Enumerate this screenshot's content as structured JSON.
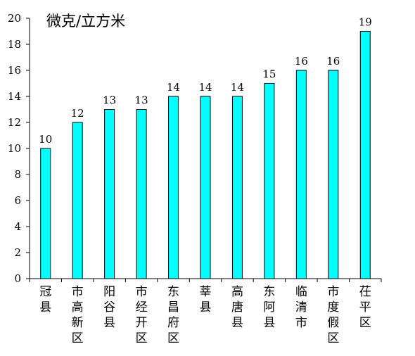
{
  "chart_data": {
    "type": "bar",
    "unit_label": "微克/立方米",
    "categories": [
      "冠县",
      "市高新区",
      "阳谷县",
      "市经开区",
      "东昌府区",
      "莘县",
      "高唐县",
      "东阿县",
      "临清市",
      "市度假区",
      "茌平区"
    ],
    "values": [
      10,
      12,
      13,
      13,
      14,
      14,
      14,
      15,
      16,
      16,
      19
    ],
    "data_labels": [
      "10",
      "12",
      "13",
      "13",
      "14",
      "14",
      "14",
      "15",
      "16",
      "16",
      "19"
    ],
    "y_ticks": [
      "0",
      "2",
      "4",
      "6",
      "8",
      "10",
      "12",
      "14",
      "16",
      "18",
      "20"
    ],
    "ylim": [
      0,
      20
    ],
    "grid": false,
    "legend": "none",
    "colors": {
      "bar_fill": "#00ffff",
      "bar_stroke": "#000000",
      "axis": "#000000"
    }
  }
}
